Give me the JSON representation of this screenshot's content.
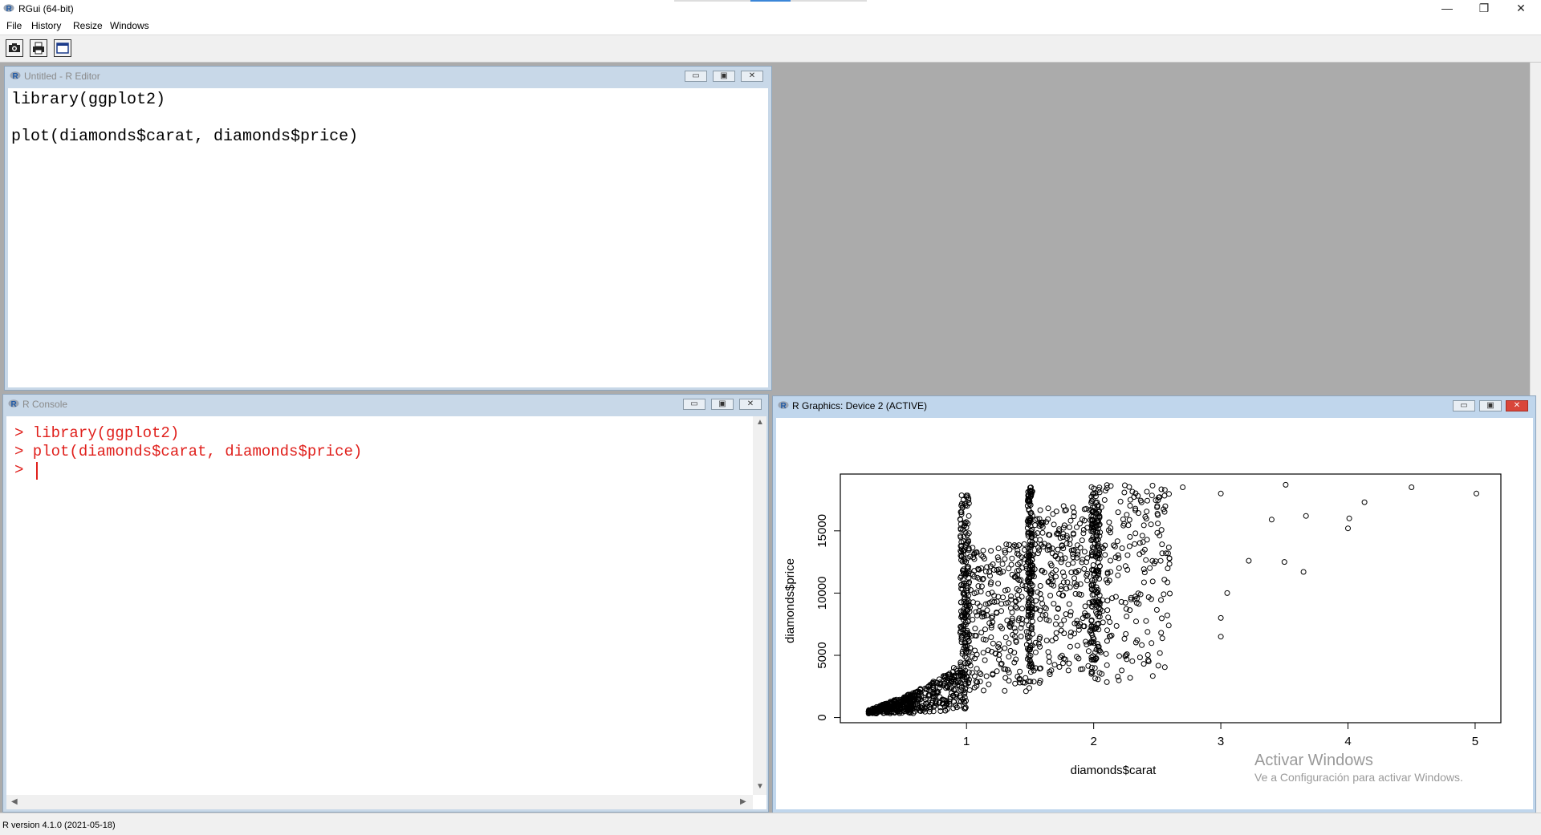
{
  "app": {
    "title": "RGui (64-bit)",
    "window_controls": {
      "minimize": "—",
      "restore": "❐",
      "close": "✕"
    }
  },
  "menu": [
    "File",
    "History",
    "Resize",
    "Windows"
  ],
  "toolbar": {
    "icons": [
      "camera-icon",
      "print-icon",
      "window-icon"
    ]
  },
  "editor": {
    "title": "Untitled - R Editor",
    "lines": [
      "library(ggplot2)",
      "",
      "plot(diamonds$carat, diamonds$price)"
    ]
  },
  "console": {
    "title": "R Console",
    "lines": [
      "> library(ggplot2)",
      "> plot(diamonds$carat, diamonds$price)",
      "> "
    ]
  },
  "graphics": {
    "title": "R Graphics: Device 2 (ACTIVE)"
  },
  "chart_data": {
    "type": "scatter",
    "title": "",
    "xlabel": "diamonds$carat",
    "ylabel": "diamonds$price",
    "xlim": [
      0.2,
      5.01
    ],
    "ylim": [
      326,
      18823
    ],
    "xticks": [
      1,
      2,
      3,
      4,
      5
    ],
    "yticks": [
      0,
      5000,
      10000,
      15000
    ],
    "grid": false,
    "points_sample": [
      {
        "x": 0.23,
        "y": 326
      },
      {
        "x": 0.3,
        "y": 450
      },
      {
        "x": 0.4,
        "y": 900
      },
      {
        "x": 0.5,
        "y": 1500
      },
      {
        "x": 0.7,
        "y": 2500
      },
      {
        "x": 0.9,
        "y": 4000
      },
      {
        "x": 1.0,
        "y": 5500
      },
      {
        "x": 1.0,
        "y": 9000
      },
      {
        "x": 1.0,
        "y": 14000
      },
      {
        "x": 1.2,
        "y": 8000
      },
      {
        "x": 1.5,
        "y": 10000
      },
      {
        "x": 1.5,
        "y": 16000
      },
      {
        "x": 1.7,
        "y": 13000
      },
      {
        "x": 2.0,
        "y": 15000
      },
      {
        "x": 2.0,
        "y": 18000
      },
      {
        "x": 2.2,
        "y": 12000
      },
      {
        "x": 2.5,
        "y": 17000
      },
      {
        "x": 2.7,
        "y": 18500
      },
      {
        "x": 3.0,
        "y": 6500
      },
      {
        "x": 3.0,
        "y": 8000
      },
      {
        "x": 3.0,
        "y": 18000
      },
      {
        "x": 3.05,
        "y": 10000
      },
      {
        "x": 3.22,
        "y": 12600
      },
      {
        "x": 3.4,
        "y": 15900
      },
      {
        "x": 3.5,
        "y": 12500
      },
      {
        "x": 3.51,
        "y": 18700
      },
      {
        "x": 3.65,
        "y": 11700
      },
      {
        "x": 3.67,
        "y": 16200
      },
      {
        "x": 4.0,
        "y": 15200
      },
      {
        "x": 4.01,
        "y": 16000
      },
      {
        "x": 4.13,
        "y": 17300
      },
      {
        "x": 4.5,
        "y": 18500
      },
      {
        "x": 5.01,
        "y": 18000
      }
    ]
  },
  "watermark": {
    "line1": "Activar Windows",
    "line2": "Ve a Configuración para activar Windows."
  },
  "status": "R version 4.1.0 (2021-05-18)"
}
